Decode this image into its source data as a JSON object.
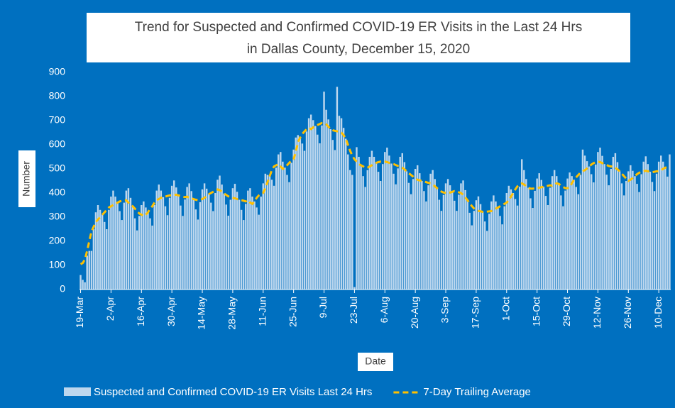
{
  "chart_data": {
    "type": "bar_line",
    "title": [
      "Trend for Suspected and Confirmed COVID-19 ER Visits in the Last 24 Hrs",
      "in Dallas County, December 15, 2020"
    ],
    "x_label": "Date",
    "y_label": "Number",
    "ylim": [
      0,
      900
    ],
    "yticks": [
      0,
      100,
      200,
      300,
      400,
      500,
      600,
      700,
      800,
      900
    ],
    "categories": [
      "19-Mar",
      null,
      null,
      null,
      null,
      null,
      null,
      null,
      null,
      null,
      null,
      null,
      null,
      null,
      "2-Apr",
      null,
      null,
      null,
      null,
      null,
      null,
      null,
      null,
      null,
      null,
      null,
      null,
      null,
      "16-Apr",
      null,
      null,
      null,
      null,
      null,
      null,
      null,
      null,
      null,
      null,
      null,
      null,
      null,
      "30-Apr",
      null,
      null,
      null,
      null,
      null,
      null,
      null,
      null,
      null,
      null,
      null,
      null,
      null,
      "14-May",
      null,
      null,
      null,
      null,
      null,
      null,
      null,
      null,
      null,
      null,
      null,
      null,
      null,
      "28-May",
      null,
      null,
      null,
      null,
      null,
      null,
      null,
      null,
      null,
      null,
      null,
      null,
      null,
      "11-Jun",
      null,
      null,
      null,
      null,
      null,
      null,
      null,
      null,
      null,
      null,
      null,
      null,
      null,
      "25-Jun",
      null,
      null,
      null,
      null,
      null,
      null,
      null,
      null,
      null,
      null,
      null,
      null,
      null,
      "9-Jul",
      null,
      null,
      null,
      null,
      null,
      null,
      null,
      null,
      null,
      null,
      null,
      null,
      null,
      "23-Jul",
      null,
      null,
      null,
      null,
      null,
      null,
      null,
      null,
      null,
      null,
      null,
      null,
      null,
      "6-Aug",
      null,
      null,
      null,
      null,
      null,
      null,
      null,
      null,
      null,
      null,
      null,
      null,
      null,
      "20-Aug",
      null,
      null,
      null,
      null,
      null,
      null,
      null,
      null,
      null,
      null,
      null,
      null,
      null,
      "3-Sep",
      null,
      null,
      null,
      null,
      null,
      null,
      null,
      null,
      null,
      null,
      null,
      null,
      null,
      "17-Sep",
      null,
      null,
      null,
      null,
      null,
      null,
      null,
      null,
      null,
      null,
      null,
      null,
      null,
      "1-Oct",
      null,
      null,
      null,
      null,
      null,
      null,
      null,
      null,
      null,
      null,
      null,
      null,
      null,
      "15-Oct",
      null,
      null,
      null,
      null,
      null,
      null,
      null,
      null,
      null,
      null,
      null,
      null,
      null,
      "29-Oct",
      null,
      null,
      null,
      null,
      null,
      null,
      null,
      null,
      null,
      null,
      null,
      null,
      null,
      "12-Nov",
      null,
      null,
      null,
      null,
      null,
      null,
      null,
      null,
      null,
      null,
      null,
      null,
      null,
      "26-Nov",
      null,
      null,
      null,
      null,
      null,
      null,
      null,
      null,
      null,
      null,
      null,
      null,
      null,
      "10-Dec",
      null,
      null,
      null,
      null,
      null
    ],
    "series": [
      {
        "name": "Suspected and Confirmed COVID-19 ER Visits Last 24 Hrs",
        "type": "bar",
        "color": "#bdd7ee",
        "values": [
          60,
          40,
          30,
          140,
          160,
          160,
          250,
          320,
          350,
          330,
          310,
          280,
          250,
          330,
          385,
          410,
          385,
          360,
          325,
          288,
          360,
          410,
          420,
          380,
          345,
          295,
          245,
          305,
          350,
          365,
          340,
          320,
          295,
          265,
          350,
          410,
          435,
          410,
          383,
          345,
          308,
          380,
          430,
          452,
          423,
          390,
          348,
          305,
          373,
          425,
          440,
          408,
          375,
          332,
          290,
          362,
          415,
          440,
          418,
          395,
          360,
          325,
          400,
          455,
          472,
          435,
          398,
          352,
          306,
          372,
          420,
          438,
          405,
          372,
          330,
          288,
          355,
          410,
          420,
          385,
          365,
          340,
          310,
          385,
          440,
          480,
          475,
          470,
          455,
          430,
          505,
          560,
          570,
          530,
          505,
          475,
          445,
          525,
          580,
          630,
          640,
          630,
          605,
          575,
          655,
          710,
          725,
          702,
          678,
          642,
          606,
          680,
          820,
          745,
          705,
          665,
          620,
          578,
          840,
          720,
          710,
          670,
          625,
          560,
          495,
          475,
          10,
          590,
          550,
          515,
          470,
          425,
          495,
          550,
          575,
          550,
          525,
          488,
          450,
          520,
          570,
          588,
          555,
          522,
          480,
          436,
          502,
          550,
          565,
          528,
          490,
          442,
          395,
          458,
          500,
          515,
          482,
          450,
          408,
          365,
          432,
          480,
          495,
          458,
          420,
          372,
          326,
          392,
          440,
          458,
          432,
          405,
          368,
          326,
          393,
          440,
          452,
          412,
          370,
          318,
          266,
          326,
          370,
          386,
          354,
          322,
          282,
          243,
          314,
          365,
          390,
          365,
          340,
          305,
          270,
          345,
          400,
          430,
          415,
          400,
          375,
          348,
          426,
          540,
          495,
          458,
          422,
          378,
          338,
          409,
          460,
          482,
          454,
          426,
          388,
          350,
          422,
          470,
          495,
          470,
          438,
          390,
          345,
          410,
          460,
          485,
          470,
          455,
          425,
          395,
          475,
          580,
          555,
          532,
          510,
          478,
          444,
          518,
          570,
          588,
          554,
          520,
          476,
          432,
          500,
          550,
          565,
          528,
          490,
          440,
          390,
          450,
          490,
          515,
          492,
          470,
          438,
          404,
          478,
          530,
          552,
          520,
          488,
          446,
          408,
          480,
          530,
          555,
          530,
          505,
          468,
          560
        ]
      },
      {
        "name": "7-Day Trailing Average",
        "type": "line",
        "color": "#ffc000",
        "dashed": true,
        "values": [
          105,
          110,
          125,
          160,
          200,
          240,
          260,
          280,
          290,
          300,
          310,
          320,
          330,
          340,
          345,
          350,
          355,
          360,
          365,
          368,
          370,
          370,
          360,
          350,
          345,
          335,
          325,
          315,
          310,
          305,
          310,
          320,
          335,
          345,
          360,
          370,
          375,
          380,
          383,
          385,
          388,
          390,
          390,
          392,
          393,
          390,
          388,
          385,
          383,
          385,
          380,
          378,
          375,
          372,
          370,
          372,
          375,
          380,
          388,
          395,
          400,
          405,
          410,
          415,
          412,
          405,
          398,
          392,
          386,
          382,
          380,
          378,
          375,
          372,
          370,
          368,
          365,
          370,
          360,
          355,
          365,
          380,
          390,
          395,
          400,
          420,
          445,
          470,
          495,
          510,
          515,
          520,
          510,
          500,
          505,
          515,
          525,
          535,
          540,
          570,
          610,
          630,
          645,
          655,
          665,
          670,
          665,
          672,
          678,
          682,
          686,
          690,
          690,
          685,
          675,
          665,
          660,
          658,
          656,
          655,
          650,
          640,
          625,
          600,
          575,
          555,
          540,
          530,
          520,
          515,
          510,
          505,
          505,
          510,
          515,
          520,
          525,
          528,
          530,
          530,
          530,
          528,
          525,
          522,
          520,
          516,
          512,
          510,
          505,
          498,
          490,
          482,
          475,
          468,
          460,
          455,
          452,
          450,
          448,
          445,
          442,
          440,
          435,
          428,
          420,
          412,
          406,
          402,
          400,
          398,
          402,
          405,
          408,
          406,
          403,
          400,
          392,
          382,
          370,
          358,
          346,
          336,
          330,
          326,
          324,
          322,
          322,
          323,
          324,
          325,
          330,
          335,
          340,
          345,
          350,
          355,
          360,
          370,
          385,
          400,
          415,
          428,
          436,
          440,
          435,
          428,
          422,
          418,
          418,
          419,
          420,
          422,
          424,
          426,
          428,
          430,
          432,
          430,
          435,
          440,
          438,
          430,
          425,
          420,
          420,
          425,
          440,
          455,
          465,
          475,
          485,
          490,
          495,
          502,
          510,
          518,
          524,
          528,
          530,
          528,
          524,
          520,
          516,
          512,
          510,
          510,
          505,
          498,
          490,
          480,
          470,
          460,
          450,
          455,
          462,
          470,
          478,
          484,
          488,
          490,
          492,
          490,
          488,
          486,
          488,
          490,
          490,
          495,
          500,
          505,
          508,
          510
        ]
      }
    ]
  }
}
